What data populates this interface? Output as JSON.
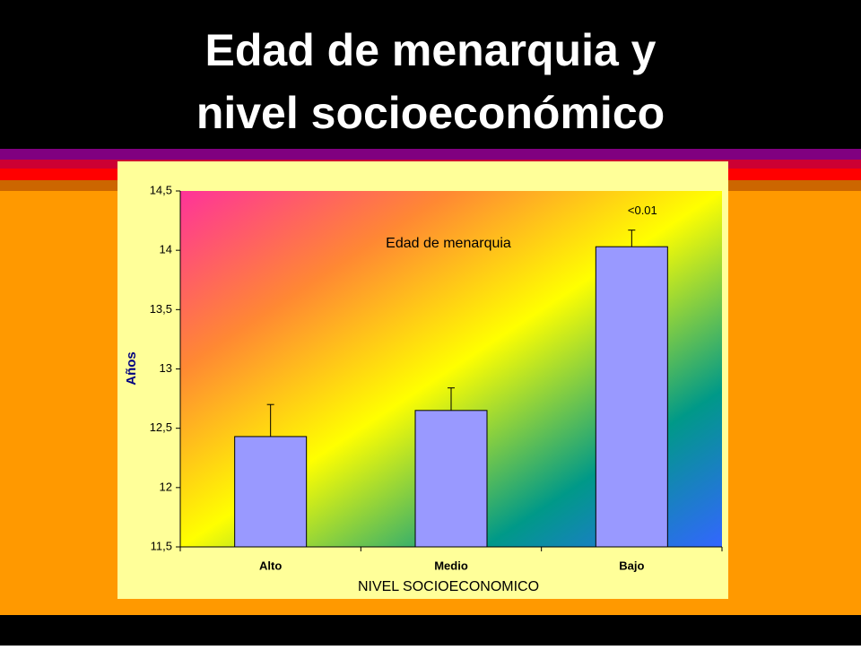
{
  "slide": {
    "title": [
      "Edad de menarquia y",
      "nivel socioeconómico"
    ]
  },
  "chart_data": {
    "type": "bar",
    "title": "Edad de menarquia",
    "annotation": "<0.01",
    "x_label": "NIVEL SOCIOECONOMICO",
    "y_label": "Años",
    "categories": [
      "Alto",
      "Medio",
      "Bajo"
    ],
    "values": [
      12.43,
      12.65,
      14.03
    ],
    "errors": [
      0.27,
      0.19,
      0.14
    ],
    "color": "#9999ff",
    "ylim": [
      11.5,
      14.5
    ],
    "yticks": [
      {
        "value": 11.5,
        "label": "11,5"
      },
      12,
      {
        "value": 12.5,
        "label": "12,5"
      },
      13,
      {
        "value": 13.5,
        "label": "13,5"
      },
      14,
      {
        "value": 14.5,
        "label": "14,5"
      }
    ]
  }
}
